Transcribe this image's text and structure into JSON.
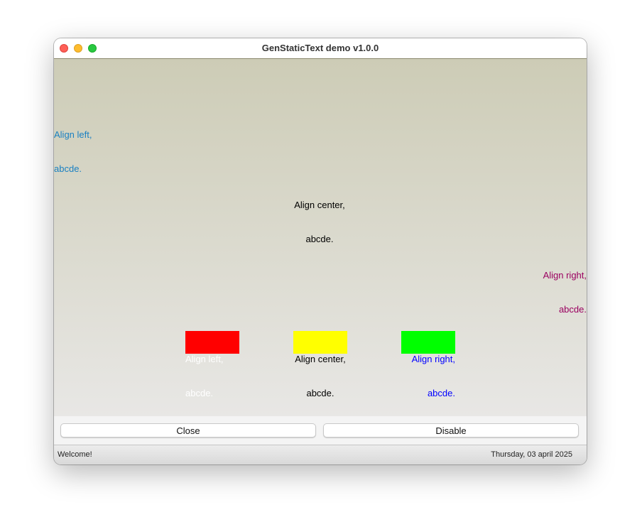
{
  "window": {
    "title": "GenStaticText demo v1.0.0"
  },
  "labels": {
    "left": {
      "line1": "Align left,",
      "line2": "abcde.",
      "color": "#1a80c2"
    },
    "center": {
      "line1": "Align center,",
      "line2": "abcde.",
      "color": "#000000"
    },
    "right": {
      "line1": "Align right,",
      "line2": "abcde.",
      "color": "#9a0060"
    },
    "box_left": {
      "line1": "Align left,",
      "line2": "abcde.",
      "bg": "#ff0000",
      "color": "#ffffff"
    },
    "box_center": {
      "line1": "Align center,",
      "line2": "abcde.",
      "bg": "#ffff00",
      "color": "#000000"
    },
    "box_right": {
      "line1": "Align right,",
      "line2": "abcde.",
      "bg": "#00ff00",
      "color": "#0000ff"
    }
  },
  "buttons": {
    "close": "Close",
    "disable": "Disable"
  },
  "statusbar": {
    "left": "Welcome!",
    "right": "Thursday, 03 april 2025"
  }
}
